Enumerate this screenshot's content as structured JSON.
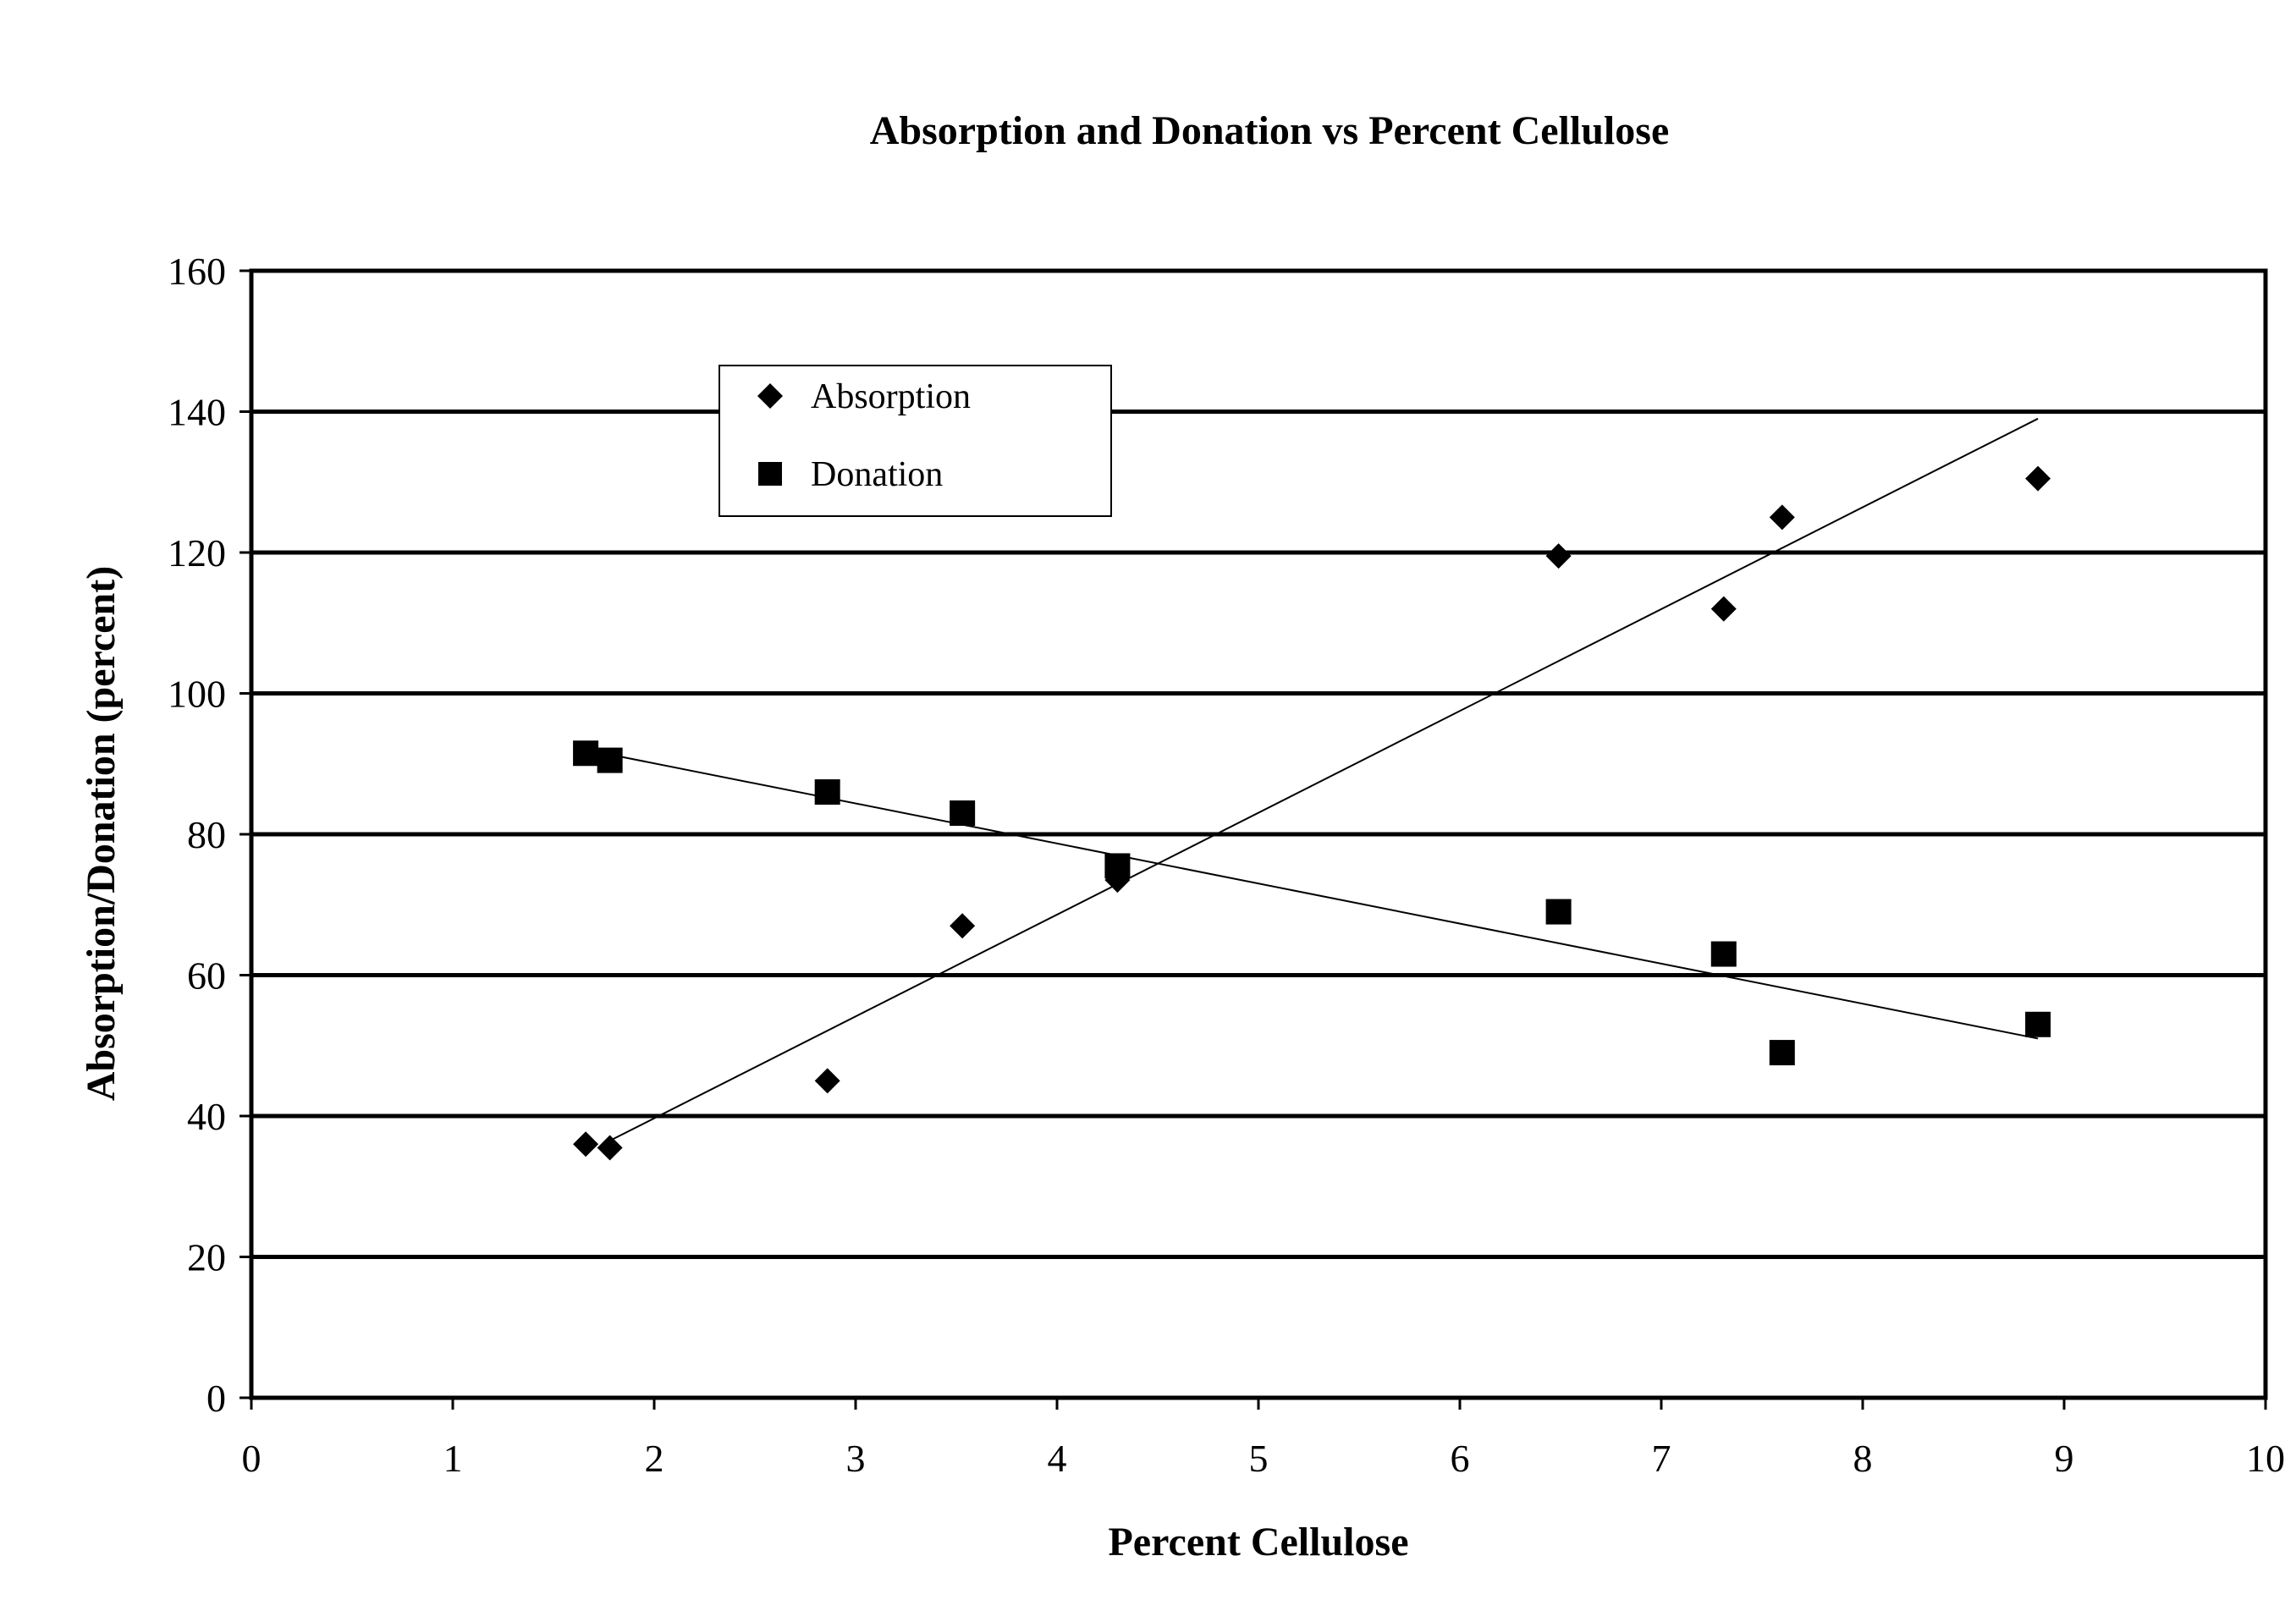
{
  "chart_data": {
    "type": "scatter",
    "title": "Absorption and Donation vs Percent Cellulose",
    "xlabel": "Percent Cellulose",
    "ylabel": "Absorption/Donation (percent)",
    "xlim": [
      0,
      10
    ],
    "ylim": [
      0,
      160
    ],
    "xticks": [
      0,
      1,
      2,
      3,
      4,
      5,
      6,
      7,
      8,
      9,
      10
    ],
    "yticks": [
      0,
      20,
      40,
      60,
      80,
      100,
      120,
      140,
      160
    ],
    "grid": "horizontal",
    "legend_position": "top-left",
    "series": [
      {
        "name": "Absorption",
        "marker": "diamond",
        "color": "#000000",
        "points": [
          {
            "x": 1.66,
            "y": 36
          },
          {
            "x": 1.78,
            "y": 35.5
          },
          {
            "x": 2.86,
            "y": 45
          },
          {
            "x": 3.53,
            "y": 67
          },
          {
            "x": 4.3,
            "y": 73.5
          },
          {
            "x": 6.49,
            "y": 119.5
          },
          {
            "x": 7.31,
            "y": 112
          },
          {
            "x": 7.6,
            "y": 125
          },
          {
            "x": 8.87,
            "y": 130.5
          }
        ],
        "trendline": {
          "x": [
            1.78,
            8.87
          ],
          "y": [
            36.5,
            139
          ]
        }
      },
      {
        "name": "Donation",
        "marker": "square",
        "color": "#000000",
        "points": [
          {
            "x": 1.66,
            "y": 91.5
          },
          {
            "x": 1.78,
            "y": 90.5
          },
          {
            "x": 2.86,
            "y": 86
          },
          {
            "x": 3.53,
            "y": 83
          },
          {
            "x": 4.3,
            "y": 75.5
          },
          {
            "x": 6.49,
            "y": 69
          },
          {
            "x": 7.31,
            "y": 63
          },
          {
            "x": 7.6,
            "y": 49
          },
          {
            "x": 8.87,
            "y": 53
          }
        ],
        "trendline": {
          "x": [
            1.66,
            8.87
          ],
          "y": [
            92,
            51
          ]
        }
      }
    ]
  }
}
